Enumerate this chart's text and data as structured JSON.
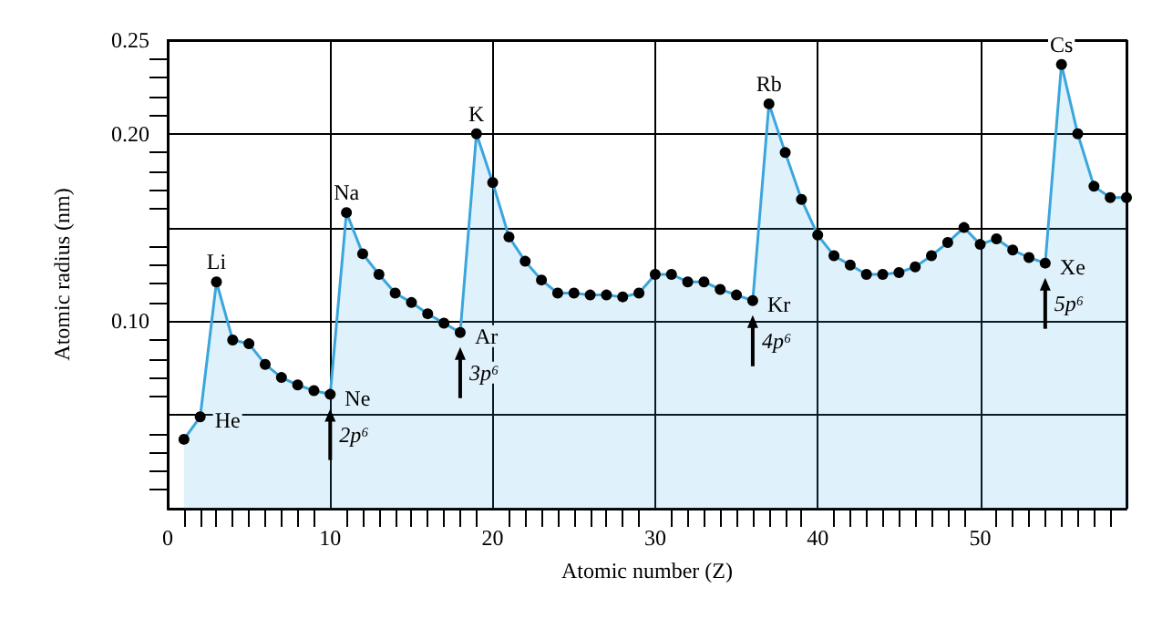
{
  "chart_data": {
    "type": "area",
    "xlabel": "Atomic number (Z)",
    "ylabel": "Atomic radius (nm)",
    "x": [
      1,
      2,
      3,
      4,
      5,
      6,
      7,
      8,
      9,
      10,
      11,
      12,
      13,
      14,
      15,
      16,
      17,
      18,
      19,
      20,
      21,
      22,
      23,
      24,
      25,
      26,
      27,
      28,
      29,
      30,
      31,
      32,
      33,
      34,
      35,
      36,
      37,
      38,
      39,
      40,
      41,
      42,
      43,
      44,
      45,
      46,
      47,
      48,
      49,
      50,
      51,
      52,
      53,
      54,
      55,
      56,
      57,
      58,
      59
    ],
    "series": [
      {
        "color": "#3aa6dd",
        "values": [
          0.037,
          0.049,
          0.121,
          0.09,
          0.088,
          0.077,
          0.07,
          0.066,
          0.063,
          0.061,
          0.158,
          0.136,
          0.125,
          0.115,
          0.11,
          0.104,
          0.099,
          0.094,
          0.2,
          0.174,
          0.145,
          0.132,
          0.122,
          0.115,
          0.115,
          0.114,
          0.114,
          0.113,
          0.115,
          0.125,
          0.125,
          0.121,
          0.121,
          0.117,
          0.114,
          0.111,
          0.216,
          0.19,
          0.165,
          0.146,
          0.135,
          0.13,
          0.125,
          0.125,
          0.126,
          0.129,
          0.135,
          0.142,
          0.15,
          0.141,
          0.144,
          0.138,
          0.134,
          0.131,
          0.237,
          0.2,
          0.172,
          0.166,
          0.166
        ]
      }
    ],
    "xlim": [
      0,
      59
    ],
    "xticks": [
      0,
      10,
      20,
      30,
      40,
      50
    ],
    "ylim": [
      0,
      0.25
    ],
    "yticks": [
      {
        "value": 0,
        "label": null
      },
      {
        "value": 0.05,
        "label": null
      },
      {
        "value": 0.1,
        "label": "0.10"
      },
      {
        "value": 0.15,
        "label": null
      },
      {
        "value": 0.2,
        "label": "0.20"
      },
      {
        "value": 0.25,
        "label": "0.25"
      }
    ],
    "grid": true,
    "marker": "circle",
    "line_style": "solid",
    "annotations": [
      {
        "text": "He",
        "x": 2,
        "y": 0.049
      },
      {
        "text": "Li",
        "x": 3,
        "y": 0.121
      },
      {
        "text": "Ne",
        "x": 10,
        "y": 0.061
      },
      {
        "text": "2p⁶",
        "x": 10,
        "y": 0.061
      },
      {
        "text": "Na",
        "x": 11,
        "y": 0.158
      },
      {
        "text": "Ar",
        "x": 18,
        "y": 0.094
      },
      {
        "text": "3p⁶",
        "x": 18,
        "y": 0.094
      },
      {
        "text": "K",
        "x": 19,
        "y": 0.2
      },
      {
        "text": "Kr",
        "x": 36,
        "y": 0.111
      },
      {
        "text": "4p⁶",
        "x": 36,
        "y": 0.111
      },
      {
        "text": "Rb",
        "x": 37,
        "y": 0.216
      },
      {
        "text": "Xe",
        "x": 54,
        "y": 0.131
      },
      {
        "text": "5p⁶",
        "x": 54,
        "y": 0.131
      },
      {
        "text": "Cs",
        "x": 55,
        "y": 0.237
      }
    ]
  }
}
